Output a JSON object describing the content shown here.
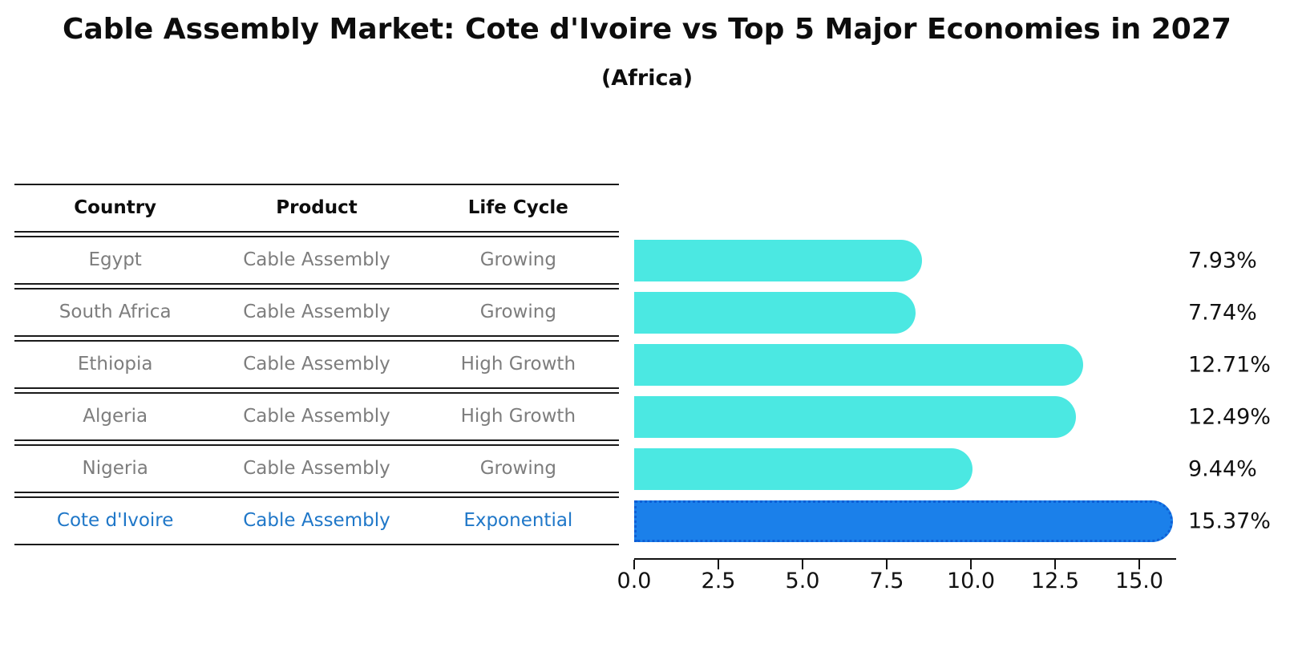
{
  "header": {
    "title": "Cable Assembly Market: Cote d'Ivoire vs Top 5 Major Economies in 2027",
    "subtitle": "(Africa)"
  },
  "table": {
    "columns": [
      "Country",
      "Product",
      "Life Cycle"
    ],
    "rows": [
      {
        "country": "Egypt",
        "product": "Cable Assembly",
        "life_cycle": "Growing",
        "highlighted": false
      },
      {
        "country": "South Africa",
        "product": "Cable Assembly",
        "life_cycle": "Growing",
        "highlighted": false
      },
      {
        "country": "Ethiopia",
        "product": "Cable Assembly",
        "life_cycle": "High Growth",
        "highlighted": false
      },
      {
        "country": "Algeria",
        "product": "Cable Assembly",
        "life_cycle": "High Growth",
        "highlighted": false
      },
      {
        "country": "Nigeria",
        "product": "Cable Assembly",
        "life_cycle": "Growing",
        "highlighted": false
      },
      {
        "country": "Cote d'Ivoire",
        "product": "Cable Assembly",
        "life_cycle": "Exponential",
        "highlighted": true
      }
    ]
  },
  "chart_data": {
    "type": "bar",
    "orientation": "horizontal",
    "title": "Cable Assembly Market: Cote d'Ivoire vs Top 5 Major Economies in 2027",
    "subtitle": "(Africa)",
    "categories": [
      "Egypt",
      "South Africa",
      "Ethiopia",
      "Algeria",
      "Nigeria",
      "Cote d'Ivoire"
    ],
    "values": [
      7.93,
      7.74,
      12.71,
      12.49,
      9.44,
      15.37
    ],
    "value_labels": [
      "7.93%",
      "7.74%",
      "12.71%",
      "12.49%",
      "9.44%",
      "15.37%"
    ],
    "unit": "percent",
    "highlight_index": 5,
    "xlim": [
      0,
      16
    ],
    "x_ticks": [
      0.0,
      2.5,
      5.0,
      7.5,
      10.0,
      12.5,
      15.0
    ],
    "x_tick_labels": [
      "0.0",
      "2.5",
      "5.0",
      "7.5",
      "10.0",
      "12.5",
      "15.0"
    ],
    "grid": false,
    "legend": false,
    "colors": {
      "bar_default": "#4BE8E2",
      "bar_highlight": "#1B80EA",
      "bar_highlight_border": "#0E5FD6",
      "highlight_text": "#1F77C8",
      "table_text": "#7D7D7D",
      "header_text": "#0D0D0D",
      "axis_text": "#111111",
      "background": "#FFFFFF"
    }
  }
}
